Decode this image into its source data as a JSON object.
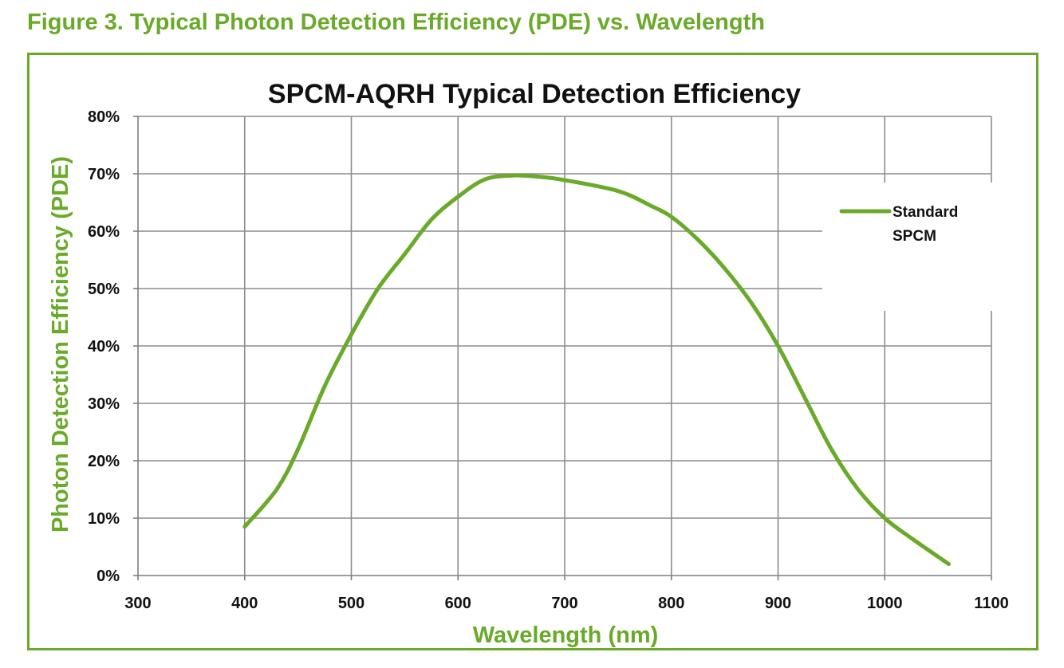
{
  "figure": {
    "caption": "Figure 3. Typical Photon Detection Efficiency (PDE) vs. Wavelength"
  },
  "colors": {
    "series": "#6aaa2a",
    "grid": "#8c8c8c",
    "axis": "#7f7f7f",
    "frame": "#6aaa2a",
    "text": "#111111"
  },
  "chart_data": {
    "type": "line",
    "title": "SPCM-AQRH Typical Detection Efficiency",
    "xlabel": "Wavelength (nm)",
    "ylabel": "Photon Detection Efficiency (PDE)",
    "xlim": [
      300,
      1100
    ],
    "ylim": [
      0,
      0.8
    ],
    "x_ticks": [
      300,
      400,
      500,
      600,
      700,
      800,
      900,
      1000,
      1100
    ],
    "x_tick_labels": [
      "300",
      "400",
      "500",
      "600",
      "700",
      "800",
      "900",
      "1000",
      "1100"
    ],
    "y_ticks": [
      0,
      0.1,
      0.2,
      0.3,
      0.4,
      0.5,
      0.6,
      0.7,
      0.8
    ],
    "y_tick_labels": [
      "0%",
      "10%",
      "20%",
      "30%",
      "40%",
      "50%",
      "60%",
      "70%",
      "80%"
    ],
    "grid": true,
    "legend_position": "right",
    "series": [
      {
        "name": "Standard SPCM",
        "legend_lines": [
          "Standard",
          "SPCM"
        ],
        "x": [
          400,
          430,
          450,
          475,
          500,
          525,
          550,
          575,
          600,
          625,
          650,
          675,
          700,
          750,
          780,
          800,
          825,
          850,
          875,
          900,
          925,
          950,
          975,
          1000,
          1025,
          1060
        ],
        "y": [
          0.085,
          0.15,
          0.22,
          0.33,
          0.42,
          0.5,
          0.56,
          0.62,
          0.66,
          0.69,
          0.697,
          0.695,
          0.689,
          0.67,
          0.645,
          0.625,
          0.585,
          0.535,
          0.475,
          0.4,
          0.31,
          0.22,
          0.15,
          0.1,
          0.065,
          0.02
        ]
      }
    ]
  }
}
